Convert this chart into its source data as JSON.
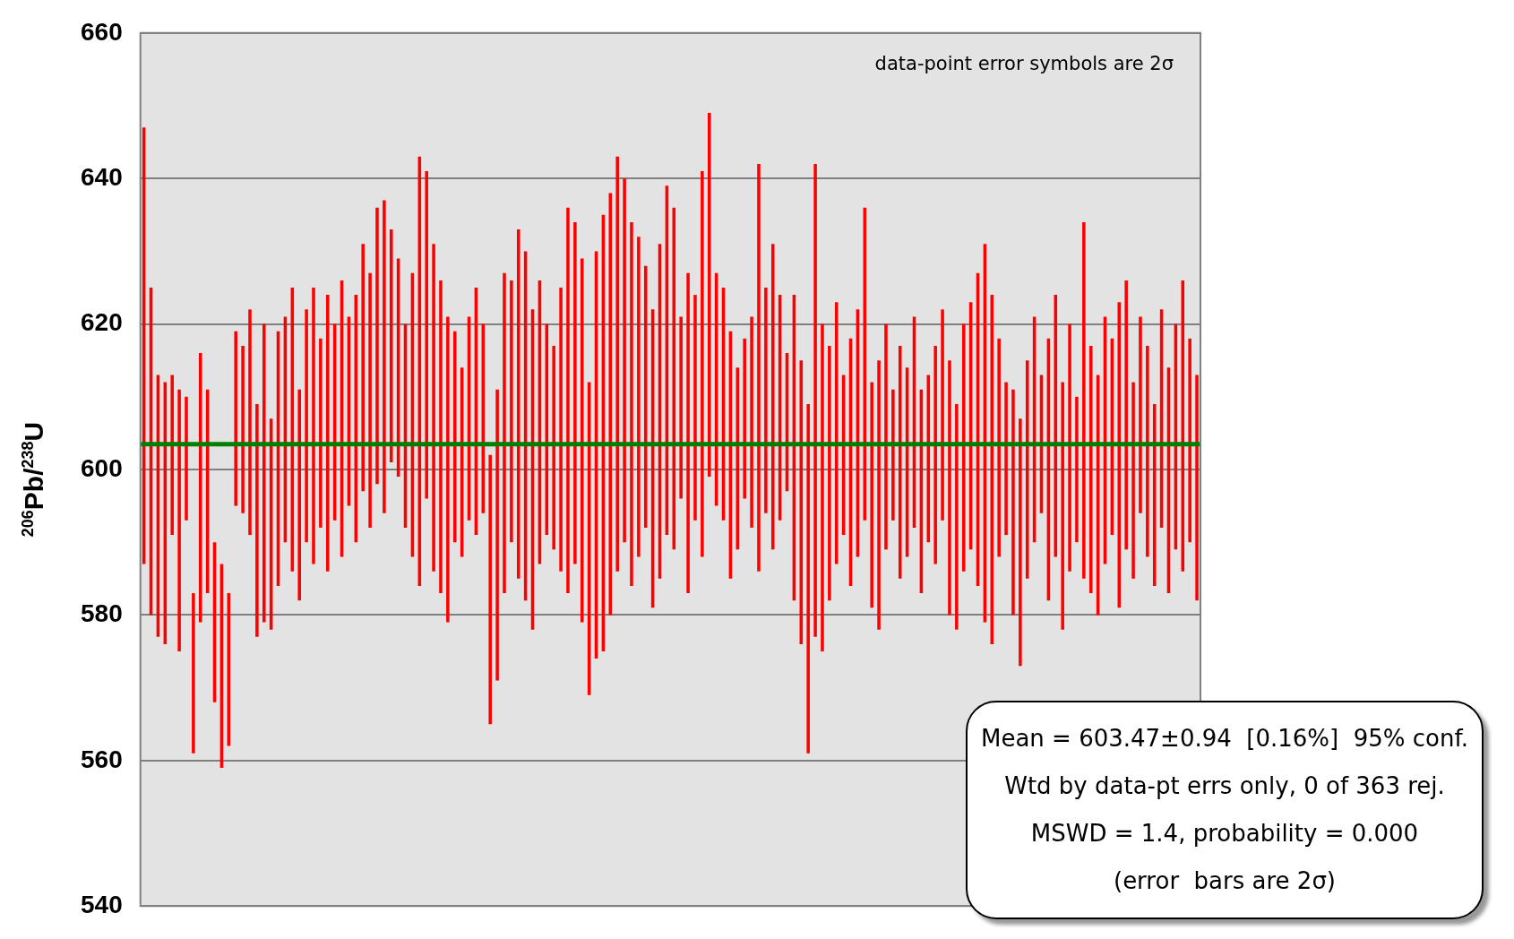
{
  "chart_data": {
    "type": "bar",
    "ylabel": "$^{206}$Pb/$^{238}$U",
    "categories": [
      null,
      null,
      null,
      null,
      null,
      null,
      null,
      null,
      null,
      null,
      null,
      null,
      null,
      null,
      null,
      null,
      null,
      null,
      null,
      null,
      null,
      null,
      null,
      null,
      null,
      null,
      null,
      null,
      null,
      null,
      null,
      null,
      null,
      null,
      null,
      null,
      null,
      null,
      null,
      null,
      null,
      null,
      null,
      null,
      null,
      null,
      null,
      null,
      null,
      null,
      null,
      null,
      null,
      null,
      null,
      null,
      null,
      null,
      null,
      null,
      null,
      null,
      null,
      null,
      null,
      null,
      null,
      null,
      null,
      null,
      null,
      null,
      null,
      null,
      null,
      null,
      null,
      null,
      null,
      null,
      null,
      null,
      null,
      null,
      null,
      null,
      null,
      null,
      null,
      null,
      null,
      null,
      null,
      null,
      null,
      null,
      null,
      null,
      null,
      null,
      null,
      null,
      null,
      null,
      null,
      null,
      null,
      null,
      null,
      null,
      null,
      null,
      null,
      null,
      null,
      null,
      null,
      null,
      null,
      null,
      null,
      null,
      null,
      null,
      null,
      null,
      null,
      null,
      null,
      null,
      null,
      null,
      null,
      null,
      null,
      null,
      null,
      null,
      null,
      null,
      null,
      null,
      null,
      null,
      null,
      null,
      null,
      null,
      null,
      null
    ],
    "base": [
      587,
      580,
      577,
      576,
      591,
      575,
      593,
      561,
      579,
      583,
      568,
      559,
      562,
      595,
      594,
      591,
      577,
      579,
      578,
      584,
      590,
      586,
      582,
      590,
      587,
      592,
      586,
      593,
      588,
      595,
      590,
      597,
      592,
      598,
      594,
      601,
      599,
      592,
      588,
      584,
      596,
      586,
      583,
      579,
      590,
      588,
      593,
      591,
      594,
      565,
      571,
      583,
      590,
      585,
      582,
      578,
      587,
      591,
      589,
      586,
      583,
      587,
      579,
      569,
      574,
      575,
      580,
      586,
      590,
      584,
      588,
      592,
      581,
      585,
      591,
      589,
      596,
      583,
      593,
      588,
      599,
      595,
      593,
      585,
      589,
      596,
      592,
      586,
      594,
      589,
      593,
      597,
      582,
      576,
      561,
      577,
      575,
      582,
      587,
      591,
      584,
      588,
      593,
      581,
      578,
      589,
      593,
      585,
      588,
      592,
      583,
      590,
      587,
      593,
      580,
      578,
      586,
      589,
      584,
      579,
      576,
      588,
      591,
      580,
      573,
      585,
      590,
      594,
      582,
      588,
      578,
      586,
      590,
      585,
      583,
      580,
      587,
      591,
      581,
      589,
      585,
      594,
      588,
      584,
      592,
      583,
      589,
      586,
      590,
      582
    ],
    "values": [
      60,
      45,
      36,
      36,
      22,
      36,
      17,
      22,
      37,
      28,
      22,
      28,
      21,
      24,
      23,
      31,
      32,
      41,
      29,
      35,
      31,
      39,
      29,
      32,
      38,
      26,
      38,
      27,
      38,
      26,
      34,
      34,
      35,
      38,
      43,
      32,
      30,
      28,
      39,
      59,
      45,
      45,
      43,
      42,
      29,
      26,
      28,
      34,
      26,
      37,
      40,
      44,
      36,
      48,
      48,
      44,
      39,
      29,
      28,
      39,
      53,
      47,
      50,
      43,
      56,
      60,
      58,
      57,
      50,
      50,
      44,
      36,
      41,
      46,
      48,
      47,
      25,
      44,
      31,
      53,
      50,
      32,
      32,
      34,
      25,
      22,
      29,
      56,
      31,
      42,
      31,
      19,
      42,
      39,
      48,
      65,
      45,
      35,
      36,
      22,
      34,
      34,
      43,
      31,
      37,
      31,
      18,
      32,
      26,
      29,
      28,
      23,
      30,
      29,
      35,
      31,
      34,
      34,
      43,
      52,
      48,
      30,
      21,
      31,
      34,
      30,
      31,
      19,
      36,
      36,
      34,
      34,
      20,
      49,
      34,
      33,
      34,
      27,
      42,
      37,
      27,
      27,
      29,
      25,
      30,
      31,
      31,
      40,
      28,
      31
    ],
    "color": "#ff0000",
    "ylim": [
      540,
      660
    ],
    "yticks": [
      540,
      560,
      580,
      600,
      620,
      640,
      660
    ],
    "grid": "y",
    "legend": false,
    "ref_lines": [
      {
        "axis": "y",
        "value": 603.47,
        "color": "#008000"
      }
    ],
    "annotations": [
      "data-point error symbols are 2σ",
      "Mean = 603.47±0.94  [0.16%]  95% conf.",
      "Wtd by data-pt errs only, 0 of 363 rej.",
      "MSWD = 1.4, probability = 0.000",
      "(error  bars are 2σ)"
    ]
  }
}
